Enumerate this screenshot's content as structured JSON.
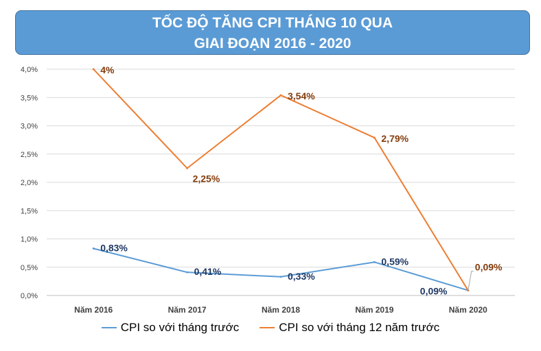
{
  "chart_data": {
    "type": "line",
    "title": "TỐC ĐỘ TĂNG CPI THÁNG 10 QUA",
    "subtitle": "GIAI ĐOẠN 2016 - 2020",
    "categories": [
      "Năm 2016",
      "Năm 2017",
      "Năm 2018",
      "Năm 2019",
      "Năm 2020"
    ],
    "y_ticks": [
      "0,0%",
      "0,5%",
      "1,0%",
      "1,5%",
      "2,0%",
      "2,5%",
      "3,0%",
      "3,5%",
      "4,0%"
    ],
    "ylim": [
      0,
      4
    ],
    "grid": true,
    "legend_position": "bottom",
    "series": [
      {
        "name": "CPI so với tháng trước",
        "values": [
          0.83,
          0.41,
          0.33,
          0.59,
          0.09
        ],
        "labels": [
          "0,83%",
          "0,41%",
          "0,33%",
          "0,59%",
          "0,09%"
        ],
        "color": "#5b9bd5",
        "label_color": "#1f3864"
      },
      {
        "name": "CPI so với tháng 12 năm trước",
        "values": [
          4.0,
          2.25,
          3.54,
          2.79,
          0.09
        ],
        "labels": [
          "4%",
          "2,25%",
          "3,54%",
          "2,79%",
          "0,09%"
        ],
        "color": "#ed7d31",
        "label_color": "#843c0c"
      }
    ]
  }
}
